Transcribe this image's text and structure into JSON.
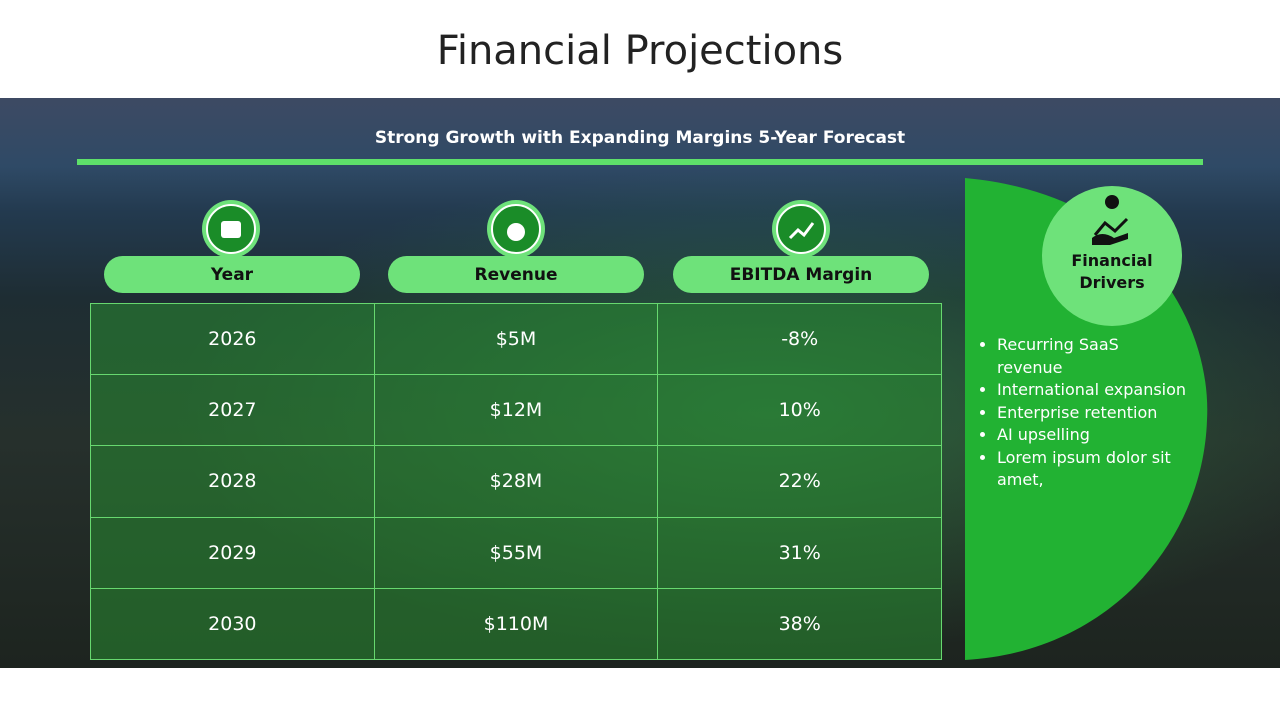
{
  "header": {
    "title": "Financial Projections"
  },
  "banner": {
    "subtitle": "Strong Growth with Expanding Margins 5-Year Forecast"
  },
  "table": {
    "headers": [
      "Year",
      "Revenue",
      "EBITDA Margin"
    ],
    "rows": [
      [
        "2026",
        "$5M",
        "-8%"
      ],
      [
        "2027",
        "$12M",
        "10%"
      ],
      [
        "2028",
        "$28M",
        "22%"
      ],
      [
        "2029",
        "$55M",
        "31%"
      ],
      [
        "2030",
        "$110M",
        "38%"
      ]
    ]
  },
  "drivers": {
    "title": "Financial Drivers",
    "items": [
      "Recurring SaaS revenue",
      "International expansion",
      "Enterprise retention",
      "AI upselling",
      "Lorem ipsum dolor sit amet,"
    ]
  }
}
